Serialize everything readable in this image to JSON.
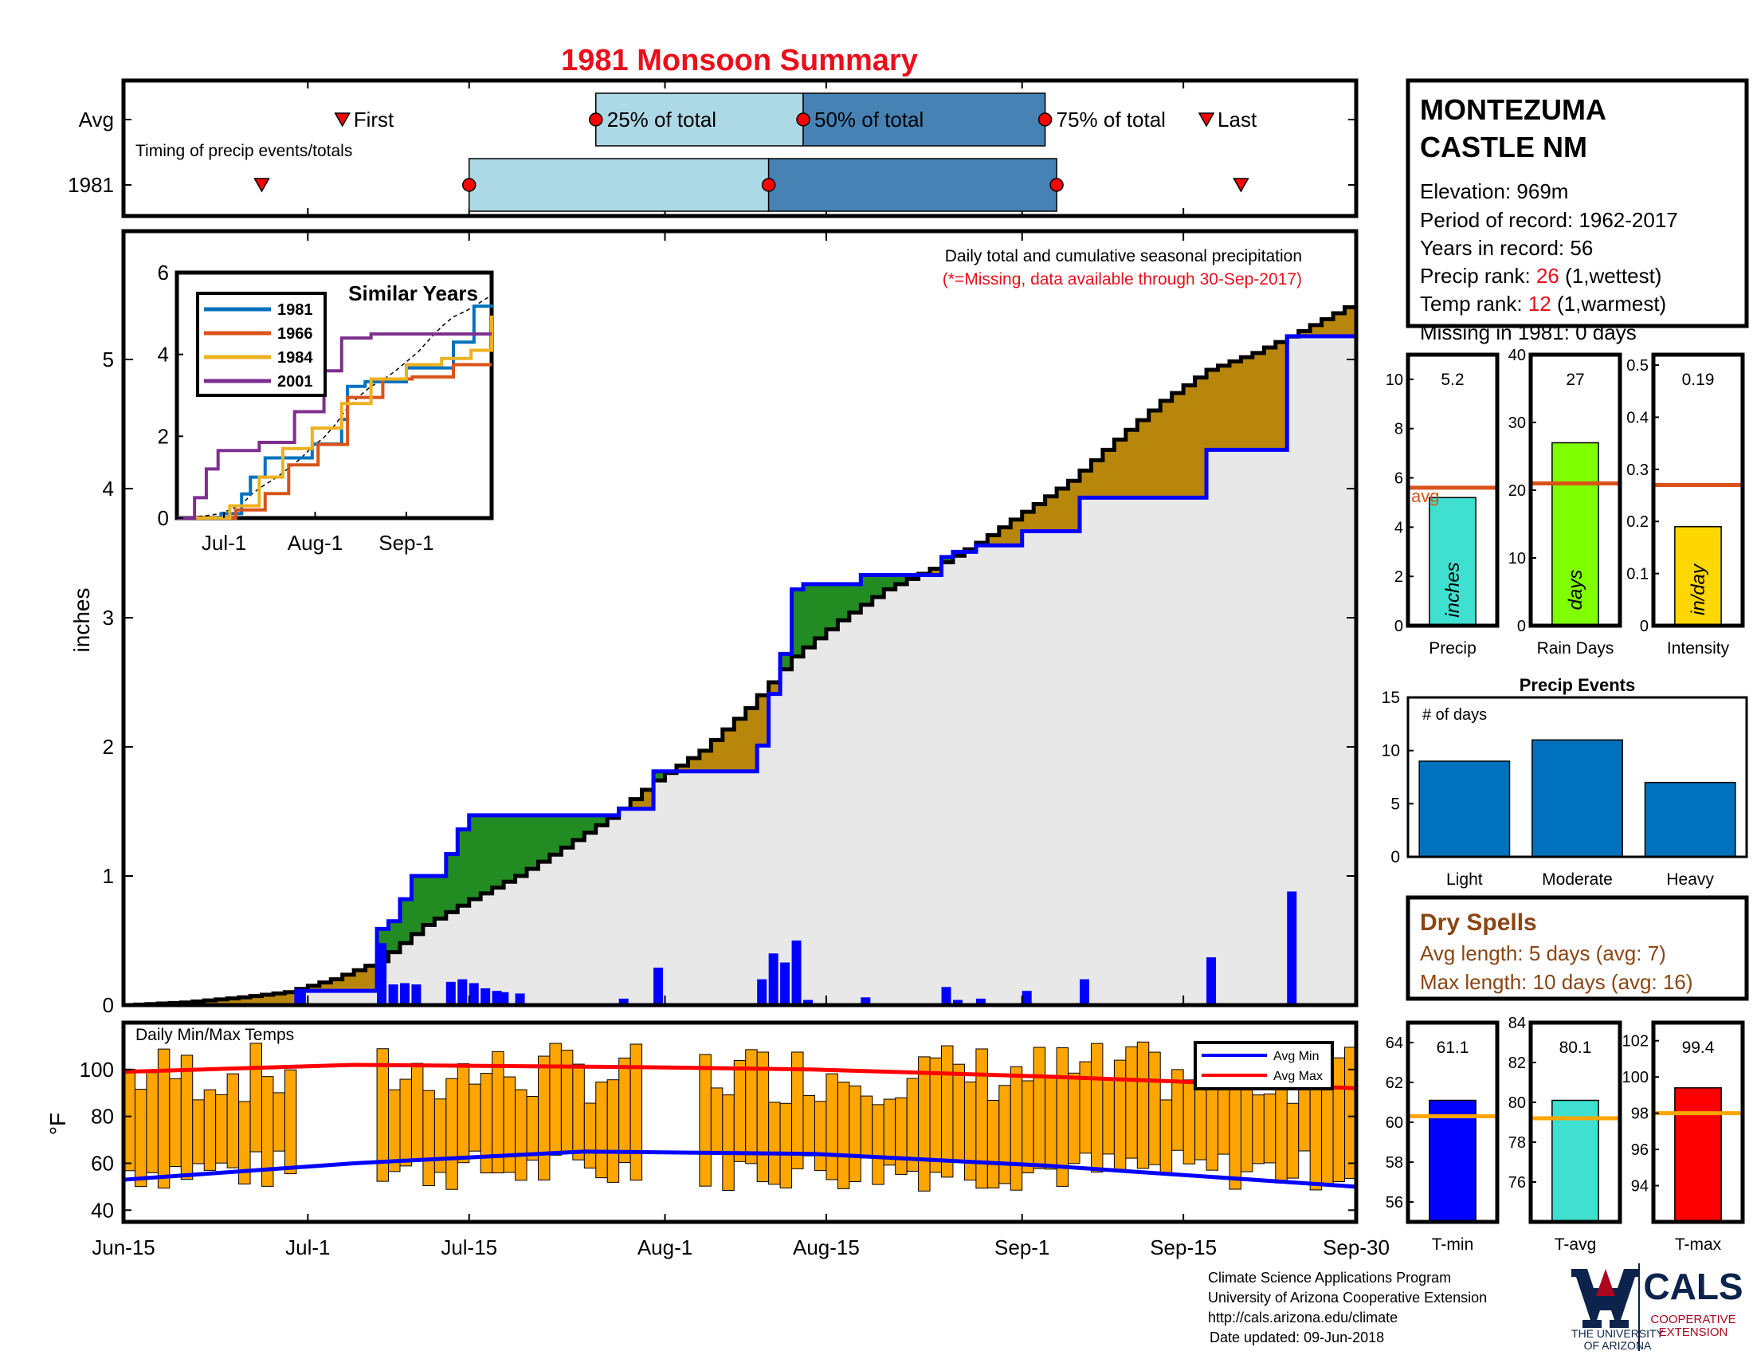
{
  "title": "1981 Monsoon Summary",
  "colors": {
    "title": "#e8101c",
    "green": "#228b22",
    "brown": "#b8860b",
    "blue": "#0000ff",
    "orange": "#ffa500",
    "light": "#add8e6",
    "steel": "#4682b4",
    "red": "#ff0000",
    "avg": "#d95319"
  },
  "timing": {
    "rows": [
      "Avg",
      "1981"
    ],
    "label": "Timing of precip events/totals",
    "markers": {
      "first": "First",
      "q25": "25% of total",
      "q50": "50% of total",
      "q75": "75% of total",
      "last": "Last"
    }
  },
  "station": {
    "name_line1": "MONTEZUMA",
    "name_line2": "CASTLE NM",
    "elevation": "Elevation: 969m",
    "period": "Period of record: 1962-2017",
    "years": "Years in record: 56",
    "precip_rank_label": "Precip rank: ",
    "precip_rank_value": "26",
    "precip_rank_note": " (1,wettest)",
    "temp_rank_label": "Temp rank: ",
    "temp_rank_value": "12",
    "temp_rank_note": " (1,warmest)",
    "missing": "Missing in 1981: 0 days"
  },
  "main_panel": {
    "heading": "Daily total and cumulative seasonal precipitation",
    "missing_note": "(*=Missing, data available through 30-Sep-2017)",
    "ylabel": "inches"
  },
  "temps_panel": {
    "label": "Daily Min/Max Temps",
    "ylabel": "°F",
    "legend_min": "Avg Min",
    "legend_max": "Avg Max"
  },
  "footer": {
    "line1": "Climate Science Applications Program",
    "line2": "University of Arizona Cooperative Extension",
    "line3": "http://cals.arizona.edu/climate",
    "line4": "Date updated: 09-Jun-2018"
  },
  "logos": {
    "ua_line1": "THE UNIVERSITY",
    "ua_line2": "OF ARIZONA",
    "cals": "CALS",
    "cals_line1": "COOPERATIVE",
    "cals_line2": "EXTENSION"
  },
  "dry_spells": {
    "title": "Dry Spells",
    "avg_length": "Avg length: 5 days (avg: 7)",
    "max_length": "Max length: 10 days (avg: 16)"
  },
  "chart_data": [
    {
      "id": "timing",
      "type": "bar",
      "title": "Timing of precip events/totals",
      "x_range_days_from_jun15": [
        0,
        107
      ],
      "series": [
        {
          "name": "Avg",
          "first": 19,
          "q25": 41,
          "q50": 59,
          "q75": 80,
          "last": 94
        },
        {
          "name": "1981",
          "first": 12,
          "q25": 30,
          "q50": 56,
          "q75": 81,
          "last": 97
        }
      ]
    },
    {
      "id": "cumulative",
      "type": "area",
      "xlabel": "",
      "ylabel": "inches",
      "x_ticks": [
        "Jun-15",
        "Jul-1",
        "Jul-15",
        "Aug-1",
        "Aug-15",
        "Sep-1",
        "Sep-15",
        "Sep-30"
      ],
      "x_tick_days": [
        0,
        16,
        30,
        47,
        61,
        78,
        92,
        107
      ],
      "ylim": [
        0,
        6
      ],
      "y_ticks": [
        0,
        1,
        2,
        3,
        4,
        5
      ],
      "daily_precip_1981": [
        {
          "day": 15,
          "value": 0.11
        },
        {
          "day": 22,
          "value": 0.48
        },
        {
          "day": 23,
          "value": 0.16
        },
        {
          "day": 24,
          "value": 0.17
        },
        {
          "day": 25,
          "value": 0.16
        },
        {
          "day": 28,
          "value": 0.18
        },
        {
          "day": 29,
          "value": 0.2
        },
        {
          "day": 30,
          "value": 0.17
        },
        {
          "day": 31,
          "value": 0.13
        },
        {
          "day": 32,
          "value": 0.11
        },
        {
          "day": 32.6,
          "value": 0.1
        },
        {
          "day": 34,
          "value": 0.09
        },
        {
          "day": 43,
          "value": 0.05
        },
        {
          "day": 46,
          "value": 0.29
        },
        {
          "day": 55,
          "value": 0.2
        },
        {
          "day": 56,
          "value": 0.4
        },
        {
          "day": 57,
          "value": 0.33
        },
        {
          "day": 58,
          "value": 0.5
        },
        {
          "day": 59,
          "value": 0.04
        },
        {
          "day": 64,
          "value": 0.06
        },
        {
          "day": 71,
          "value": 0.14
        },
        {
          "day": 72,
          "value": 0.04
        },
        {
          "day": 74,
          "value": 0.05
        },
        {
          "day": 78,
          "value": 0.11
        },
        {
          "day": 83,
          "value": 0.2
        },
        {
          "day": 94,
          "value": 0.37
        },
        {
          "day": 101,
          "value": 0.88
        }
      ],
      "cumulative_1981": [
        [
          0,
          0
        ],
        [
          15,
          0.11
        ],
        [
          22,
          0.59
        ],
        [
          23,
          0.65
        ],
        [
          24,
          0.82
        ],
        [
          25,
          1.0
        ],
        [
          28,
          1.17
        ],
        [
          29,
          1.36
        ],
        [
          30,
          1.47
        ],
        [
          43,
          1.52
        ],
        [
          46,
          1.81
        ],
        [
          55,
          2.01
        ],
        [
          56,
          2.41
        ],
        [
          57,
          2.72
        ],
        [
          58,
          3.22
        ],
        [
          59,
          3.26
        ],
        [
          64,
          3.33
        ],
        [
          70,
          3.33
        ],
        [
          71,
          3.47
        ],
        [
          72,
          3.51
        ],
        [
          74,
          3.56
        ],
        [
          78,
          3.67
        ],
        [
          83,
          3.93
        ],
        [
          94,
          4.3
        ],
        [
          101,
          5.18
        ],
        [
          107,
          5.22
        ]
      ],
      "cumulative_avg": [
        [
          0,
          0
        ],
        [
          5,
          0.02
        ],
        [
          10,
          0.06
        ],
        [
          14,
          0.1
        ],
        [
          18,
          0.2
        ],
        [
          22,
          0.34
        ],
        [
          26,
          0.62
        ],
        [
          30,
          0.82
        ],
        [
          34,
          1.0
        ],
        [
          38,
          1.22
        ],
        [
          42,
          1.45
        ],
        [
          46,
          1.74
        ],
        [
          50,
          1.97
        ],
        [
          54,
          2.3
        ],
        [
          58,
          2.7
        ],
        [
          62,
          2.98
        ],
        [
          66,
          3.22
        ],
        [
          70,
          3.38
        ],
        [
          74,
          3.58
        ],
        [
          78,
          3.82
        ],
        [
          82,
          4.06
        ],
        [
          86,
          4.38
        ],
        [
          90,
          4.68
        ],
        [
          94,
          4.92
        ],
        [
          98,
          5.05
        ],
        [
          102,
          5.22
        ],
        [
          107,
          5.45
        ]
      ]
    },
    {
      "id": "similar_years",
      "type": "line",
      "title": "Similar Years",
      "x_ticks": [
        "Jul-1",
        "Aug-1",
        "Sep-1"
      ],
      "ylim": [
        0,
        6
      ],
      "y_ticks": [
        0,
        2,
        4,
        6
      ],
      "series": [
        {
          "name": "1981",
          "color": "#0072bd",
          "points": [
            [
              0,
              0
            ],
            [
              15,
              0.11
            ],
            [
              22,
              0.59
            ],
            [
              25,
              1.0
            ],
            [
              30,
              1.47
            ],
            [
              46,
              1.81
            ],
            [
              56,
              2.41
            ],
            [
              58,
              3.22
            ],
            [
              64,
              3.33
            ],
            [
              78,
              3.67
            ],
            [
              94,
              4.3
            ],
            [
              101,
              5.18
            ],
            [
              107,
              5.22
            ]
          ]
        },
        {
          "name": "1966",
          "color": "#d95319",
          "points": [
            [
              0,
              0
            ],
            [
              20,
              0.2
            ],
            [
              30,
              0.6
            ],
            [
              38,
              1.3
            ],
            [
              48,
              1.8
            ],
            [
              58,
              2.95
            ],
            [
              70,
              3.4
            ],
            [
              80,
              3.45
            ],
            [
              94,
              3.75
            ],
            [
              107,
              3.75
            ]
          ]
        },
        {
          "name": "1984",
          "color": "#edb120",
          "points": [
            [
              0,
              0
            ],
            [
              18,
              0.3
            ],
            [
              28,
              1.0
            ],
            [
              36,
              1.7
            ],
            [
              46,
              2.2
            ],
            [
              56,
              2.8
            ],
            [
              66,
              3.4
            ],
            [
              78,
              3.75
            ],
            [
              90,
              3.9
            ],
            [
              100,
              4.1
            ],
            [
              107,
              4.95
            ]
          ]
        },
        {
          "name": "2001",
          "color": "#7e2f8e",
          "points": [
            [
              0,
              0
            ],
            [
              6,
              0.5
            ],
            [
              10,
              1.2
            ],
            [
              14,
              1.65
            ],
            [
              28,
              1.85
            ],
            [
              40,
              2.6
            ],
            [
              50,
              3.6
            ],
            [
              56,
              4.4
            ],
            [
              66,
              4.5
            ],
            [
              107,
              4.5
            ]
          ]
        }
      ]
    },
    {
      "id": "temps",
      "type": "bar",
      "title": "Daily Min/Max Temps",
      "ylabel": "°F",
      "ylim": [
        35,
        120
      ],
      "y_ticks": [
        40,
        60,
        80,
        100
      ],
      "avg_min": [
        [
          0,
          53
        ],
        [
          20,
          60
        ],
        [
          40,
          65
        ],
        [
          60,
          64
        ],
        [
          80,
          59
        ],
        [
          107,
          50
        ]
      ],
      "avg_max": [
        [
          0,
          99
        ],
        [
          20,
          102
        ],
        [
          45,
          101
        ],
        [
          60,
          100
        ],
        [
          80,
          97
        ],
        [
          107,
          92
        ]
      ],
      "missing_days": [
        [
          15,
          22
        ],
        [
          45,
          50
        ]
      ],
      "daily_min_range": [
        48,
        66
      ],
      "daily_max_range": [
        85,
        112
      ]
    },
    {
      "id": "precip",
      "type": "bar",
      "categories": [
        "Precip"
      ],
      "values": [
        5.2
      ],
      "avg": 5.6,
      "ylim": [
        0,
        11
      ],
      "bar_label": "inches",
      "avg_label": "avg",
      "value_label": "5.2",
      "y_ticks": [
        0,
        2,
        4,
        6,
        8,
        10
      ]
    },
    {
      "id": "rain_days",
      "type": "bar",
      "categories": [
        "Rain Days"
      ],
      "values": [
        27
      ],
      "avg": 21,
      "ylim": [
        0,
        40
      ],
      "bar_label": "days",
      "value_label": "27",
      "y_ticks": [
        0,
        10,
        20,
        30,
        40
      ]
    },
    {
      "id": "intensity",
      "type": "bar",
      "categories": [
        "Intensity"
      ],
      "values": [
        0.19
      ],
      "avg": 0.27,
      "ylim": [
        0,
        0.52
      ],
      "bar_label": "in/day",
      "value_label": "0.19",
      "y_ticks": [
        0,
        0.1,
        0.2,
        0.3,
        0.4,
        0.5
      ]
    },
    {
      "id": "precip_events",
      "type": "bar",
      "title": "Precip Events",
      "annotation": "# of days",
      "categories": [
        "Light",
        "Moderate",
        "Heavy"
      ],
      "values": [
        9,
        11,
        7
      ],
      "ylim": [
        0,
        15
      ],
      "y_ticks": [
        0,
        5,
        10,
        15
      ]
    },
    {
      "id": "tmin",
      "type": "bar",
      "categories": [
        "T-min"
      ],
      "values": [
        61.1
      ],
      "avg": 60.3,
      "ylim": [
        55,
        65
      ],
      "value_label": "61.1",
      "y_ticks": [
        56,
        58,
        60,
        62,
        64
      ]
    },
    {
      "id": "tavg",
      "type": "bar",
      "categories": [
        "T-avg"
      ],
      "values": [
        80.1
      ],
      "avg": 79.2,
      "ylim": [
        74,
        84
      ],
      "value_label": "80.1",
      "y_ticks": [
        76,
        78,
        80,
        82,
        84
      ]
    },
    {
      "id": "tmax",
      "type": "bar",
      "categories": [
        "T-max"
      ],
      "values": [
        99.4
      ],
      "avg": 98.0,
      "ylim": [
        92,
        103
      ],
      "value_label": "99.4",
      "y_ticks": [
        94,
        96,
        98,
        100,
        102
      ]
    }
  ]
}
